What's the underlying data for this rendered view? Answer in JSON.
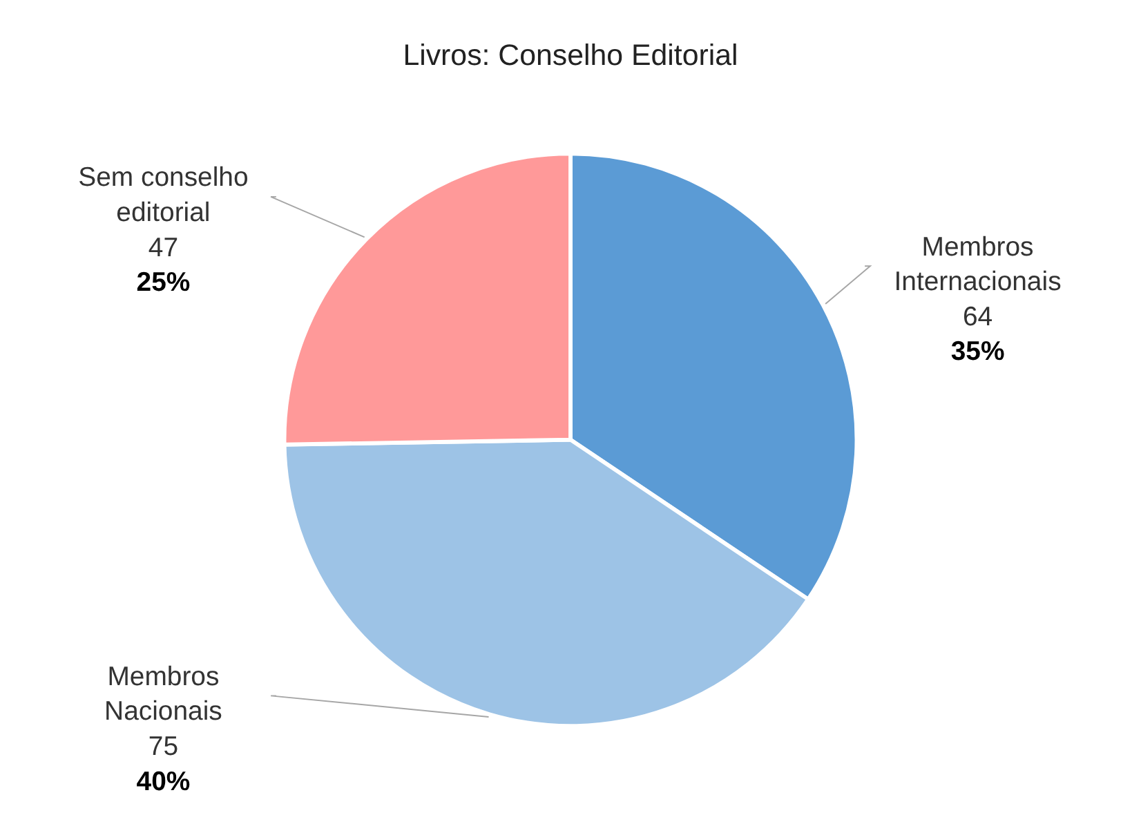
{
  "chart_data": {
    "type": "pie",
    "title": "Livros: Conselho Editorial",
    "categories": [
      "Membros Internacionais",
      "Membros Nacionais",
      "Sem conselho editorial"
    ],
    "values": [
      64,
      75,
      47
    ],
    "colors": [
      "#5b9bd5",
      "#9dc3e6",
      "#ff9999"
    ],
    "value_labels": [
      "64",
      "75",
      "47"
    ],
    "annotations": [
      {
        "text": "35%",
        "x": "Membros Internacionais"
      },
      {
        "text": "40%",
        "x": "Membros Nacionais"
      },
      {
        "text": "25%",
        "x": "Sem conselho editorial"
      }
    ]
  }
}
